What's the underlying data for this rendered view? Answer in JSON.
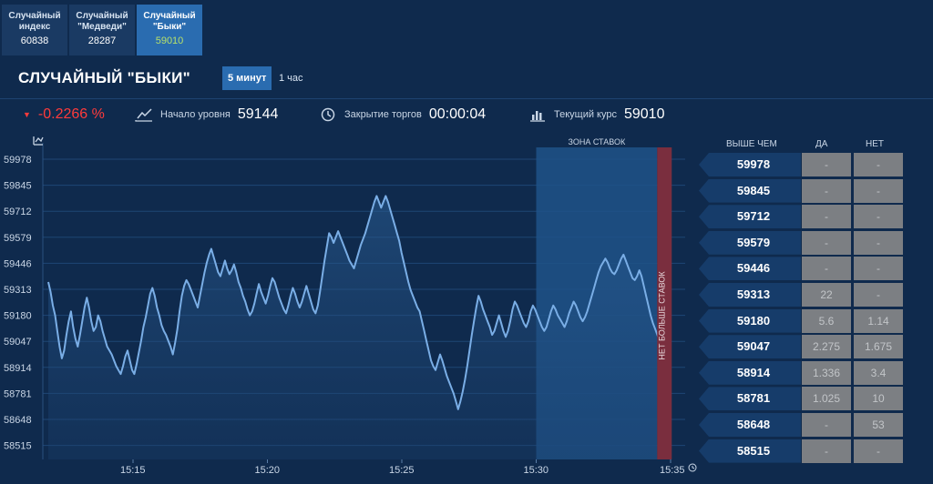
{
  "tabs": [
    {
      "label": "Случайный\nиндекс",
      "value": "60838"
    },
    {
      "label": "Случайный\n\"Медведи\"",
      "value": "28287"
    },
    {
      "label": "Случайный\n\"Быки\"",
      "value": "59010"
    }
  ],
  "title": "СЛУЧАЙНЫЙ \"БЫКИ\"",
  "timeframes": {
    "active": "5 минут",
    "other": "1 час"
  },
  "stats": {
    "change": "-0.2266 %",
    "start_label": "Начало уровня",
    "start_value": "59144",
    "close_label": "Закрытие торгов",
    "close_value": "00:00:04",
    "current_label": "Текущий курс",
    "current_value": "59010"
  },
  "icons": {
    "change": "caret-down-icon",
    "start": "trend-icon",
    "close": "clock-icon",
    "current": "bar-chart-icon",
    "chart": "chart-toggle-icon",
    "time": "clock-icon"
  },
  "chart": {
    "zone_label": "ЗОНА СТАВОК",
    "no_bets_label": "НЕТ БОЛЬШЕ СТАВОК"
  },
  "chart_data": {
    "type": "line",
    "x_labels": [
      "15:15",
      "15:20",
      "15:25",
      "15:30",
      "15:35"
    ],
    "y_ticks": [
      59978,
      59845,
      59712,
      59579,
      59446,
      59313,
      59180,
      59047,
      58914,
      58781,
      58648,
      58515
    ],
    "x_range": [
      "15:11:20",
      "15:35"
    ],
    "ylim": [
      58515,
      59978
    ],
    "bet_zone": [
      "15:30",
      "15:34:30"
    ],
    "series": [
      {
        "values": [
          59350,
          59300,
          59230,
          59180,
          59100,
          59020,
          58960,
          59000,
          59080,
          59150,
          59200,
          59120,
          59060,
          59020,
          59080,
          59150,
          59220,
          59270,
          59220,
          59150,
          59100,
          59120,
          59180,
          59150,
          59100,
          59060,
          59020,
          59000,
          58980,
          58950,
          58920,
          58900,
          58880,
          58920,
          58970,
          59000,
          58950,
          58900,
          58880,
          58930,
          58990,
          59050,
          59120,
          59170,
          59230,
          59290,
          59320,
          59280,
          59220,
          59180,
          59130,
          59100,
          59080,
          59050,
          59020,
          58980,
          59040,
          59110,
          59200,
          59280,
          59330,
          59360,
          59340,
          59310,
          59280,
          59250,
          59220,
          59280,
          59340,
          59400,
          59450,
          59490,
          59520,
          59480,
          59440,
          59400,
          59380,
          59420,
          59460,
          59420,
          59390,
          59410,
          59440,
          59400,
          59350,
          59320,
          59280,
          59250,
          59210,
          59180,
          59200,
          59240,
          59290,
          59340,
          59300,
          59270,
          59240,
          59280,
          59330,
          59370,
          59350,
          59310,
          59270,
          59240,
          59210,
          59190,
          59230,
          59280,
          59320,
          59290,
          59250,
          59220,
          59250,
          59290,
          59330,
          59290,
          59250,
          59210,
          59190,
          59230,
          59300,
          59380,
          59460,
          59530,
          59600,
          59580,
          59550,
          59580,
          59610,
          59580,
          59550,
          59520,
          59490,
          59460,
          59440,
          59420,
          59460,
          59500,
          59540,
          59570,
          59600,
          59640,
          59680,
          59720,
          59760,
          59790,
          59760,
          59730,
          59760,
          59790,
          59760,
          59720,
          59680,
          59640,
          59600,
          59560,
          59500,
          59450,
          59400,
          59350,
          59310,
          59280,
          59250,
          59220,
          59200,
          59150,
          59100,
          59050,
          59000,
          58950,
          58920,
          58900,
          58940,
          58980,
          58950,
          58910,
          58870,
          58840,
          58810,
          58780,
          58740,
          58700,
          58740,
          58790,
          58850,
          58920,
          59000,
          59080,
          59150,
          59220,
          59280,
          59250,
          59210,
          59180,
          59150,
          59120,
          59080,
          59100,
          59140,
          59180,
          59140,
          59100,
          59070,
          59100,
          59150,
          59210,
          59250,
          59230,
          59200,
          59170,
          59140,
          59120,
          59150,
          59200,
          59230,
          59210,
          59180,
          59150,
          59120,
          59100,
          59120,
          59160,
          59200,
          59230,
          59210,
          59180,
          59160,
          59140,
          59120,
          59150,
          59190,
          59220,
          59250,
          59230,
          59200,
          59170,
          59150,
          59170,
          59200,
          59240,
          59280,
          59320,
          59360,
          59400,
          59430,
          59450,
          59470,
          59450,
          59420,
          59400,
          59390,
          59410,
          59440,
          59470,
          59490,
          59460,
          59430,
          59400,
          59370,
          59360,
          59380,
          59410,
          59380,
          59330,
          59280,
          59230,
          59180,
          59140,
          59110,
          59080,
          59050,
          59030,
          59010
        ]
      }
    ]
  },
  "table": {
    "headers": {
      "level": "ВЫШЕ ЧЕМ",
      "yes": "ДА",
      "no": "НЕТ"
    },
    "rows": [
      {
        "level": "59978",
        "yes": "-",
        "no": "-"
      },
      {
        "level": "59845",
        "yes": "-",
        "no": "-"
      },
      {
        "level": "59712",
        "yes": "-",
        "no": "-"
      },
      {
        "level": "59579",
        "yes": "-",
        "no": "-"
      },
      {
        "level": "59446",
        "yes": "-",
        "no": "-"
      },
      {
        "level": "59313",
        "yes": "22",
        "no": "-"
      },
      {
        "level": "59180",
        "yes": "5.6",
        "no": "1.14"
      },
      {
        "level": "59047",
        "yes": "2.275",
        "no": "1.675"
      },
      {
        "level": "58914",
        "yes": "1.336",
        "no": "3.4"
      },
      {
        "level": "58781",
        "yes": "1.025",
        "no": "10"
      },
      {
        "level": "58648",
        "yes": "-",
        "no": "53"
      },
      {
        "level": "58515",
        "yes": "-",
        "no": "-"
      }
    ]
  },
  "colors": {
    "bg": "#0f2a4d",
    "line": "#7aaee6",
    "zone": "#1e5288",
    "no_bets": "#7a2e3e",
    "negative": "#ff3b3b",
    "accent": "#2a6cb0"
  }
}
